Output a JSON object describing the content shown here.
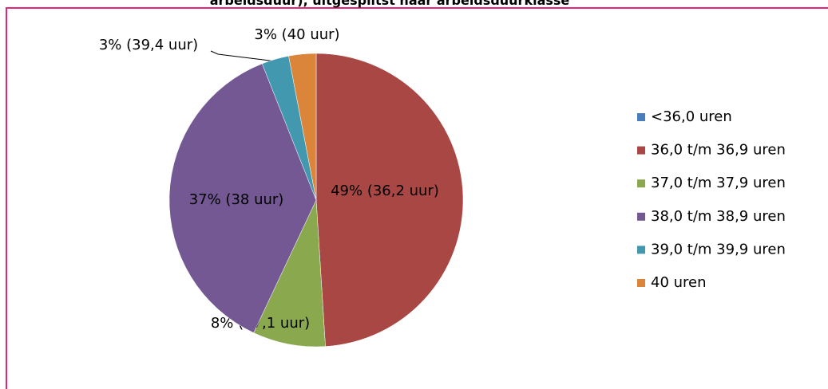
{
  "chart_data": {
    "type": "pie",
    "title": "arbeidsduur), uitgesplitst naar arbeidsduurklasse",
    "categories": [
      "<36,0 uren",
      "36,0 t/m 36,9 uren",
      "37,0 t/m 37,9 uren",
      "38,0 t/m 38,9 uren",
      "39,0 t/m 39,9 uren",
      "40 uren"
    ],
    "values": [
      0,
      49,
      8,
      37,
      3,
      3
    ],
    "value_labels": [
      null,
      "49% (36,2 uur)",
      "8% (37,1 uur)",
      "37% (38 uur)",
      "3% (39,4 uur)",
      "3% (40 uur)"
    ],
    "colors": [
      "#4a7ebb",
      "#a84743",
      "#8aa84e",
      "#735893",
      "#4298ae",
      "#da8539"
    ],
    "legend": "right"
  }
}
